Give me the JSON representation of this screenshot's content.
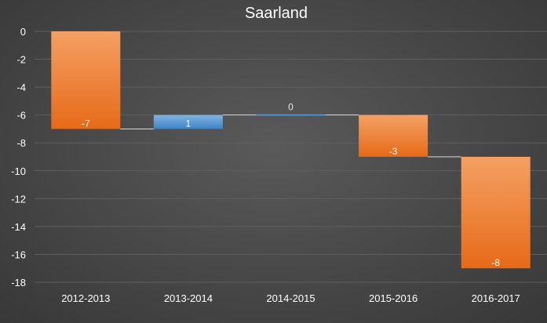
{
  "colors": {
    "decrease": "#f07c2c",
    "decrease_light": "#f4a064",
    "decrease_dark": "#e66a18",
    "increase": "#5b9bd5",
    "increase_light": "#7fb4e4",
    "increase_dark": "#3f83c4",
    "gridline": "#5f5f5f",
    "connector": "#d9d9d9",
    "axis_text": "#ffffff"
  },
  "chart_data": {
    "type": "bar",
    "subtype": "waterfall",
    "title": "Saarland",
    "xlabel": "",
    "ylabel": "",
    "categories": [
      "2012-2013",
      "2013-2014",
      "2014-2015",
      "2015-2016",
      "2016-2017"
    ],
    "values": [
      -7,
      1,
      0,
      -3,
      -8
    ],
    "data_labels": [
      "-7",
      "1",
      "0",
      "-3",
      "-8"
    ],
    "ylim": [
      -18,
      0
    ],
    "yticks": [
      0,
      -2,
      -4,
      -6,
      -8,
      -10,
      -12,
      -14,
      -16,
      -18
    ],
    "grid": true,
    "legend": "none"
  }
}
